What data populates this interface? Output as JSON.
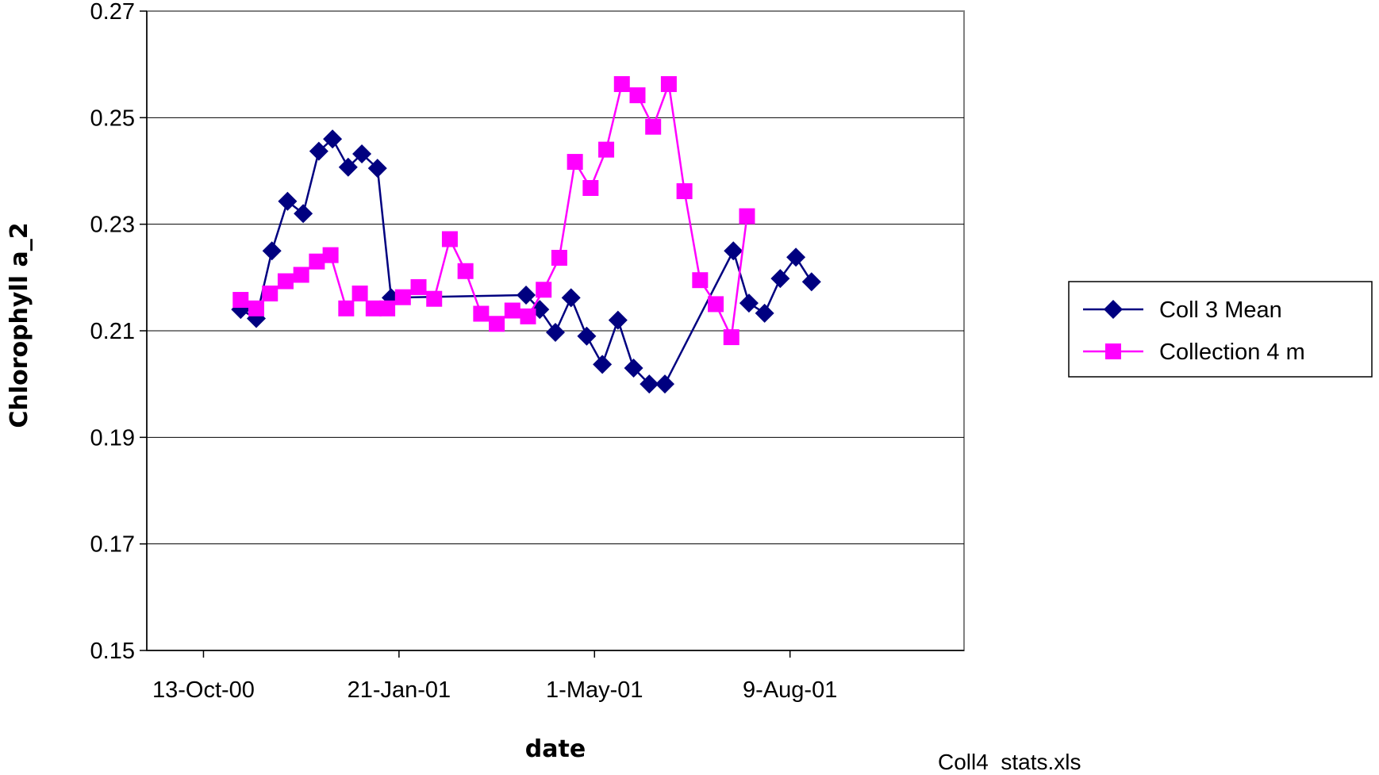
{
  "chart_data": {
    "type": "line",
    "title": "",
    "xlabel": "date",
    "ylabel": "Chlorophyll a_2",
    "ylim": [
      0.15,
      0.27
    ],
    "yticks": [
      "0.15",
      "0.17",
      "0.19",
      "0.21",
      "0.23",
      "0.25",
      "0.27"
    ],
    "xlim": [
      "2000-09-14",
      "2001-11-06"
    ],
    "xticks": [
      "13-Oct-00",
      "21-Jan-01",
      "1-May-01",
      "9-Aug-01"
    ],
    "grid": "horizontal major gridlines",
    "legend_position": "right",
    "series": [
      {
        "name": "Coll 3 Mean",
        "color": "#000080",
        "marker": "diamond",
        "points": [
          [
            "2000-11-01",
            0.214
          ],
          [
            "2000-11-09",
            0.2123
          ],
          [
            "2000-11-17",
            0.225
          ],
          [
            "2000-11-25",
            0.2343
          ],
          [
            "2000-12-03",
            0.232
          ],
          [
            "2000-12-11",
            0.2437
          ],
          [
            "2000-12-18",
            0.246
          ],
          [
            "2000-12-26",
            0.2407
          ],
          [
            "2001-01-02",
            0.2432
          ],
          [
            "2001-01-10",
            0.2405
          ],
          [
            "2001-01-17",
            0.2162
          ],
          [
            "2001-03-27",
            0.2167
          ],
          [
            "2001-04-03",
            0.214
          ],
          [
            "2001-04-11",
            0.2097
          ],
          [
            "2001-04-19",
            0.2162
          ],
          [
            "2001-04-27",
            0.209
          ],
          [
            "2001-05-05",
            0.2037
          ],
          [
            "2001-05-13",
            0.212
          ],
          [
            "2001-05-21",
            0.203
          ],
          [
            "2001-05-29",
            0.2
          ],
          [
            "2001-06-06",
            0.2
          ],
          [
            "2001-07-11",
            0.225
          ],
          [
            "2001-07-19",
            0.2152
          ],
          [
            "2001-07-27",
            0.2133
          ],
          [
            "2001-08-04",
            0.2198
          ],
          [
            "2001-08-12",
            0.2238
          ],
          [
            "2001-08-20",
            0.2192
          ]
        ]
      },
      {
        "name": "Collection 4 m",
        "color": "#ff00ff",
        "marker": "square",
        "points": [
          [
            "2000-11-01",
            0.2158
          ],
          [
            "2000-11-09",
            0.2142
          ],
          [
            "2000-11-16",
            0.217
          ],
          [
            "2000-11-24",
            0.2193
          ],
          [
            "2000-12-02",
            0.2205
          ],
          [
            "2000-12-10",
            0.223
          ],
          [
            "2000-12-17",
            0.2242
          ],
          [
            "2000-12-25",
            0.2142
          ],
          [
            "2001-01-01",
            0.217
          ],
          [
            "2001-01-08",
            0.2142
          ],
          [
            "2001-01-15",
            0.2142
          ],
          [
            "2001-01-23",
            0.2163
          ],
          [
            "2001-01-31",
            0.2182
          ],
          [
            "2001-02-08",
            0.216
          ],
          [
            "2001-02-16",
            0.2272
          ],
          [
            "2001-02-24",
            0.2212
          ],
          [
            "2001-03-04",
            0.2132
          ],
          [
            "2001-03-12",
            0.2113
          ],
          [
            "2001-03-20",
            0.2138
          ],
          [
            "2001-03-28",
            0.2127
          ],
          [
            "2001-04-05",
            0.2177
          ],
          [
            "2001-04-13",
            0.2237
          ],
          [
            "2001-04-21",
            0.2417
          ],
          [
            "2001-04-29",
            0.2368
          ],
          [
            "2001-05-07",
            0.244
          ],
          [
            "2001-05-15",
            0.2563
          ],
          [
            "2001-05-23",
            0.2542
          ],
          [
            "2001-05-31",
            0.2483
          ],
          [
            "2001-06-08",
            0.2563
          ],
          [
            "2001-06-16",
            0.2362
          ],
          [
            "2001-06-24",
            0.2195
          ],
          [
            "2001-07-02",
            0.215
          ],
          [
            "2001-07-10",
            0.2088
          ],
          [
            "2001-07-18",
            0.2315
          ]
        ]
      }
    ]
  },
  "footer": {
    "filename": "Coll4  stats.xls"
  }
}
